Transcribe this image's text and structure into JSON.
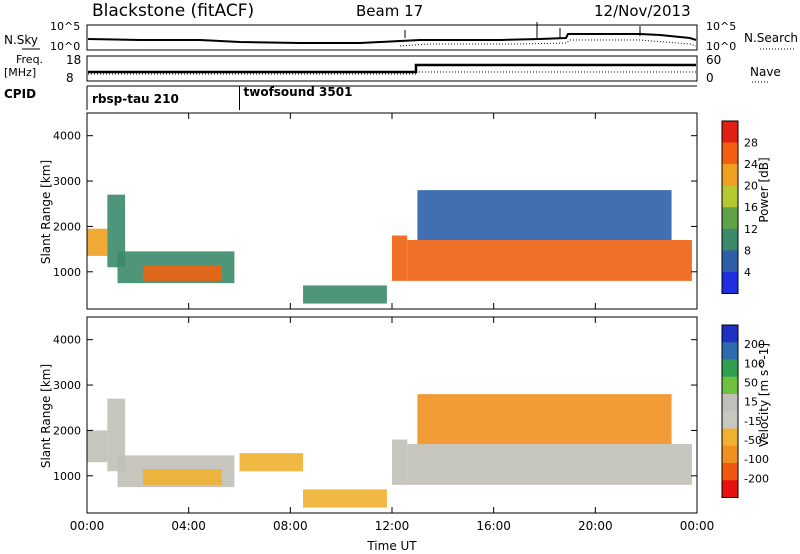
{
  "header": {
    "site": "Blackstone (fitACF)",
    "beam": "Beam 17",
    "date": "12/Nov/2013"
  },
  "side_labels": {
    "nsky": "N.Sky",
    "freq": "Freq.",
    "freq_unit": "[MHz]",
    "cpid": "CPID",
    "nsearch": "N.Search",
    "nave": "Nave"
  },
  "strip_ticks": {
    "noise_left_top": "10^5",
    "noise_left_bottom": "10^0",
    "noise_right_top": "10^5",
    "noise_right_bottom": "10^0",
    "freq_left_top": "18",
    "freq_left_bottom": "8",
    "nave_right_top": "60",
    "nave_right_bottom": "0"
  },
  "cpid_segments": [
    {
      "label": "rbsp-tau 210",
      "start_hour": 0
    },
    {
      "label": "twofsound 3501",
      "start_hour": 6
    }
  ],
  "colors": {
    "power_scale": [
      "#1f2fe0",
      "#2e5fa8",
      "#3c8a6a",
      "#5fa24a",
      "#b5c830",
      "#f0a020",
      "#f06010",
      "#e02010"
    ],
    "velocity_scale": [
      "#e81010",
      "#f05810",
      "#f09020",
      "#f0b030",
      "#c8c8c0",
      "#c0c0b8",
      "#70c040",
      "#30a050",
      "#2e6ab0",
      "#2030c0"
    ]
  },
  "chart_data": [
    {
      "type": "heatmap",
      "title": "Power",
      "xlabel": "",
      "ylabel": "Slant Range [km]",
      "colorbar_label": "Power [dB]",
      "xlim": [
        0,
        24
      ],
      "ylim": [
        180,
        4500
      ],
      "x_ticks": [
        "00:00",
        "04:00",
        "08:00",
        "12:00",
        "16:00",
        "20:00",
        "00:00"
      ],
      "y_ticks": [
        1000,
        2000,
        3000,
        4000
      ],
      "colorbar_ticks": [
        "28",
        "24",
        "20",
        "16",
        "12",
        "8",
        "4"
      ],
      "colorbar_range": [
        0,
        32
      ],
      "regions": [
        {
          "x0": 0.0,
          "x1": 0.8,
          "y0": 1350,
          "y1": 1950,
          "value": 20
        },
        {
          "x0": 0.8,
          "x1": 1.5,
          "y0": 1100,
          "y1": 2700,
          "value": 10
        },
        {
          "x0": 1.2,
          "x1": 5.8,
          "y0": 750,
          "y1": 1450,
          "value": 10
        },
        {
          "x0": 2.2,
          "x1": 5.3,
          "y0": 800,
          "y1": 1150,
          "value": 26
        },
        {
          "x0": 8.5,
          "x1": 11.8,
          "y0": 300,
          "y1": 700,
          "value": 8
        },
        {
          "x0": 12.0,
          "x1": 12.6,
          "y0": 800,
          "y1": 1800,
          "value": 24
        },
        {
          "x0": 12.6,
          "x1": 23.8,
          "y0": 800,
          "y1": 1700,
          "value": 25
        },
        {
          "x0": 13.0,
          "x1": 23.0,
          "y0": 1700,
          "y1": 2800,
          "value": 6
        }
      ]
    },
    {
      "type": "heatmap",
      "title": "Velocity",
      "xlabel": "Time UT",
      "ylabel": "Slant Range [km]",
      "colorbar_label": "Velocity [m s^-1]",
      "xlim": [
        0,
        24
      ],
      "ylim": [
        180,
        4500
      ],
      "x_ticks": [
        "00:00",
        "04:00",
        "08:00",
        "12:00",
        "16:00",
        "20:00",
        "00:00"
      ],
      "y_ticks": [
        1000,
        2000,
        3000,
        4000
      ],
      "colorbar_ticks": [
        "200",
        "100",
        "50",
        "15",
        "-15",
        "-50",
        "-100",
        "-200"
      ],
      "colorbar_range": [
        -250,
        250
      ],
      "regions": [
        {
          "x0": 0.0,
          "x1": 0.8,
          "y0": 1300,
          "y1": 2000,
          "value": 0
        },
        {
          "x0": 0.8,
          "x1": 1.5,
          "y0": 1100,
          "y1": 2700,
          "value": 20
        },
        {
          "x0": 1.2,
          "x1": 5.8,
          "y0": 750,
          "y1": 1450,
          "value": 0
        },
        {
          "x0": 2.2,
          "x1": 5.3,
          "y0": 800,
          "y1": 1150,
          "value": -60
        },
        {
          "x0": 6.0,
          "x1": 8.5,
          "y0": 1100,
          "y1": 1500,
          "value": -60
        },
        {
          "x0": 8.5,
          "x1": 11.8,
          "y0": 300,
          "y1": 700,
          "value": -80
        },
        {
          "x0": 12.0,
          "x1": 12.6,
          "y0": 800,
          "y1": 1800,
          "value": 40
        },
        {
          "x0": 12.6,
          "x1": 23.8,
          "y0": 800,
          "y1": 1700,
          "value": 0
        },
        {
          "x0": 13.0,
          "x1": 23.0,
          "y0": 1700,
          "y1": 2800,
          "value": -120
        }
      ]
    }
  ]
}
